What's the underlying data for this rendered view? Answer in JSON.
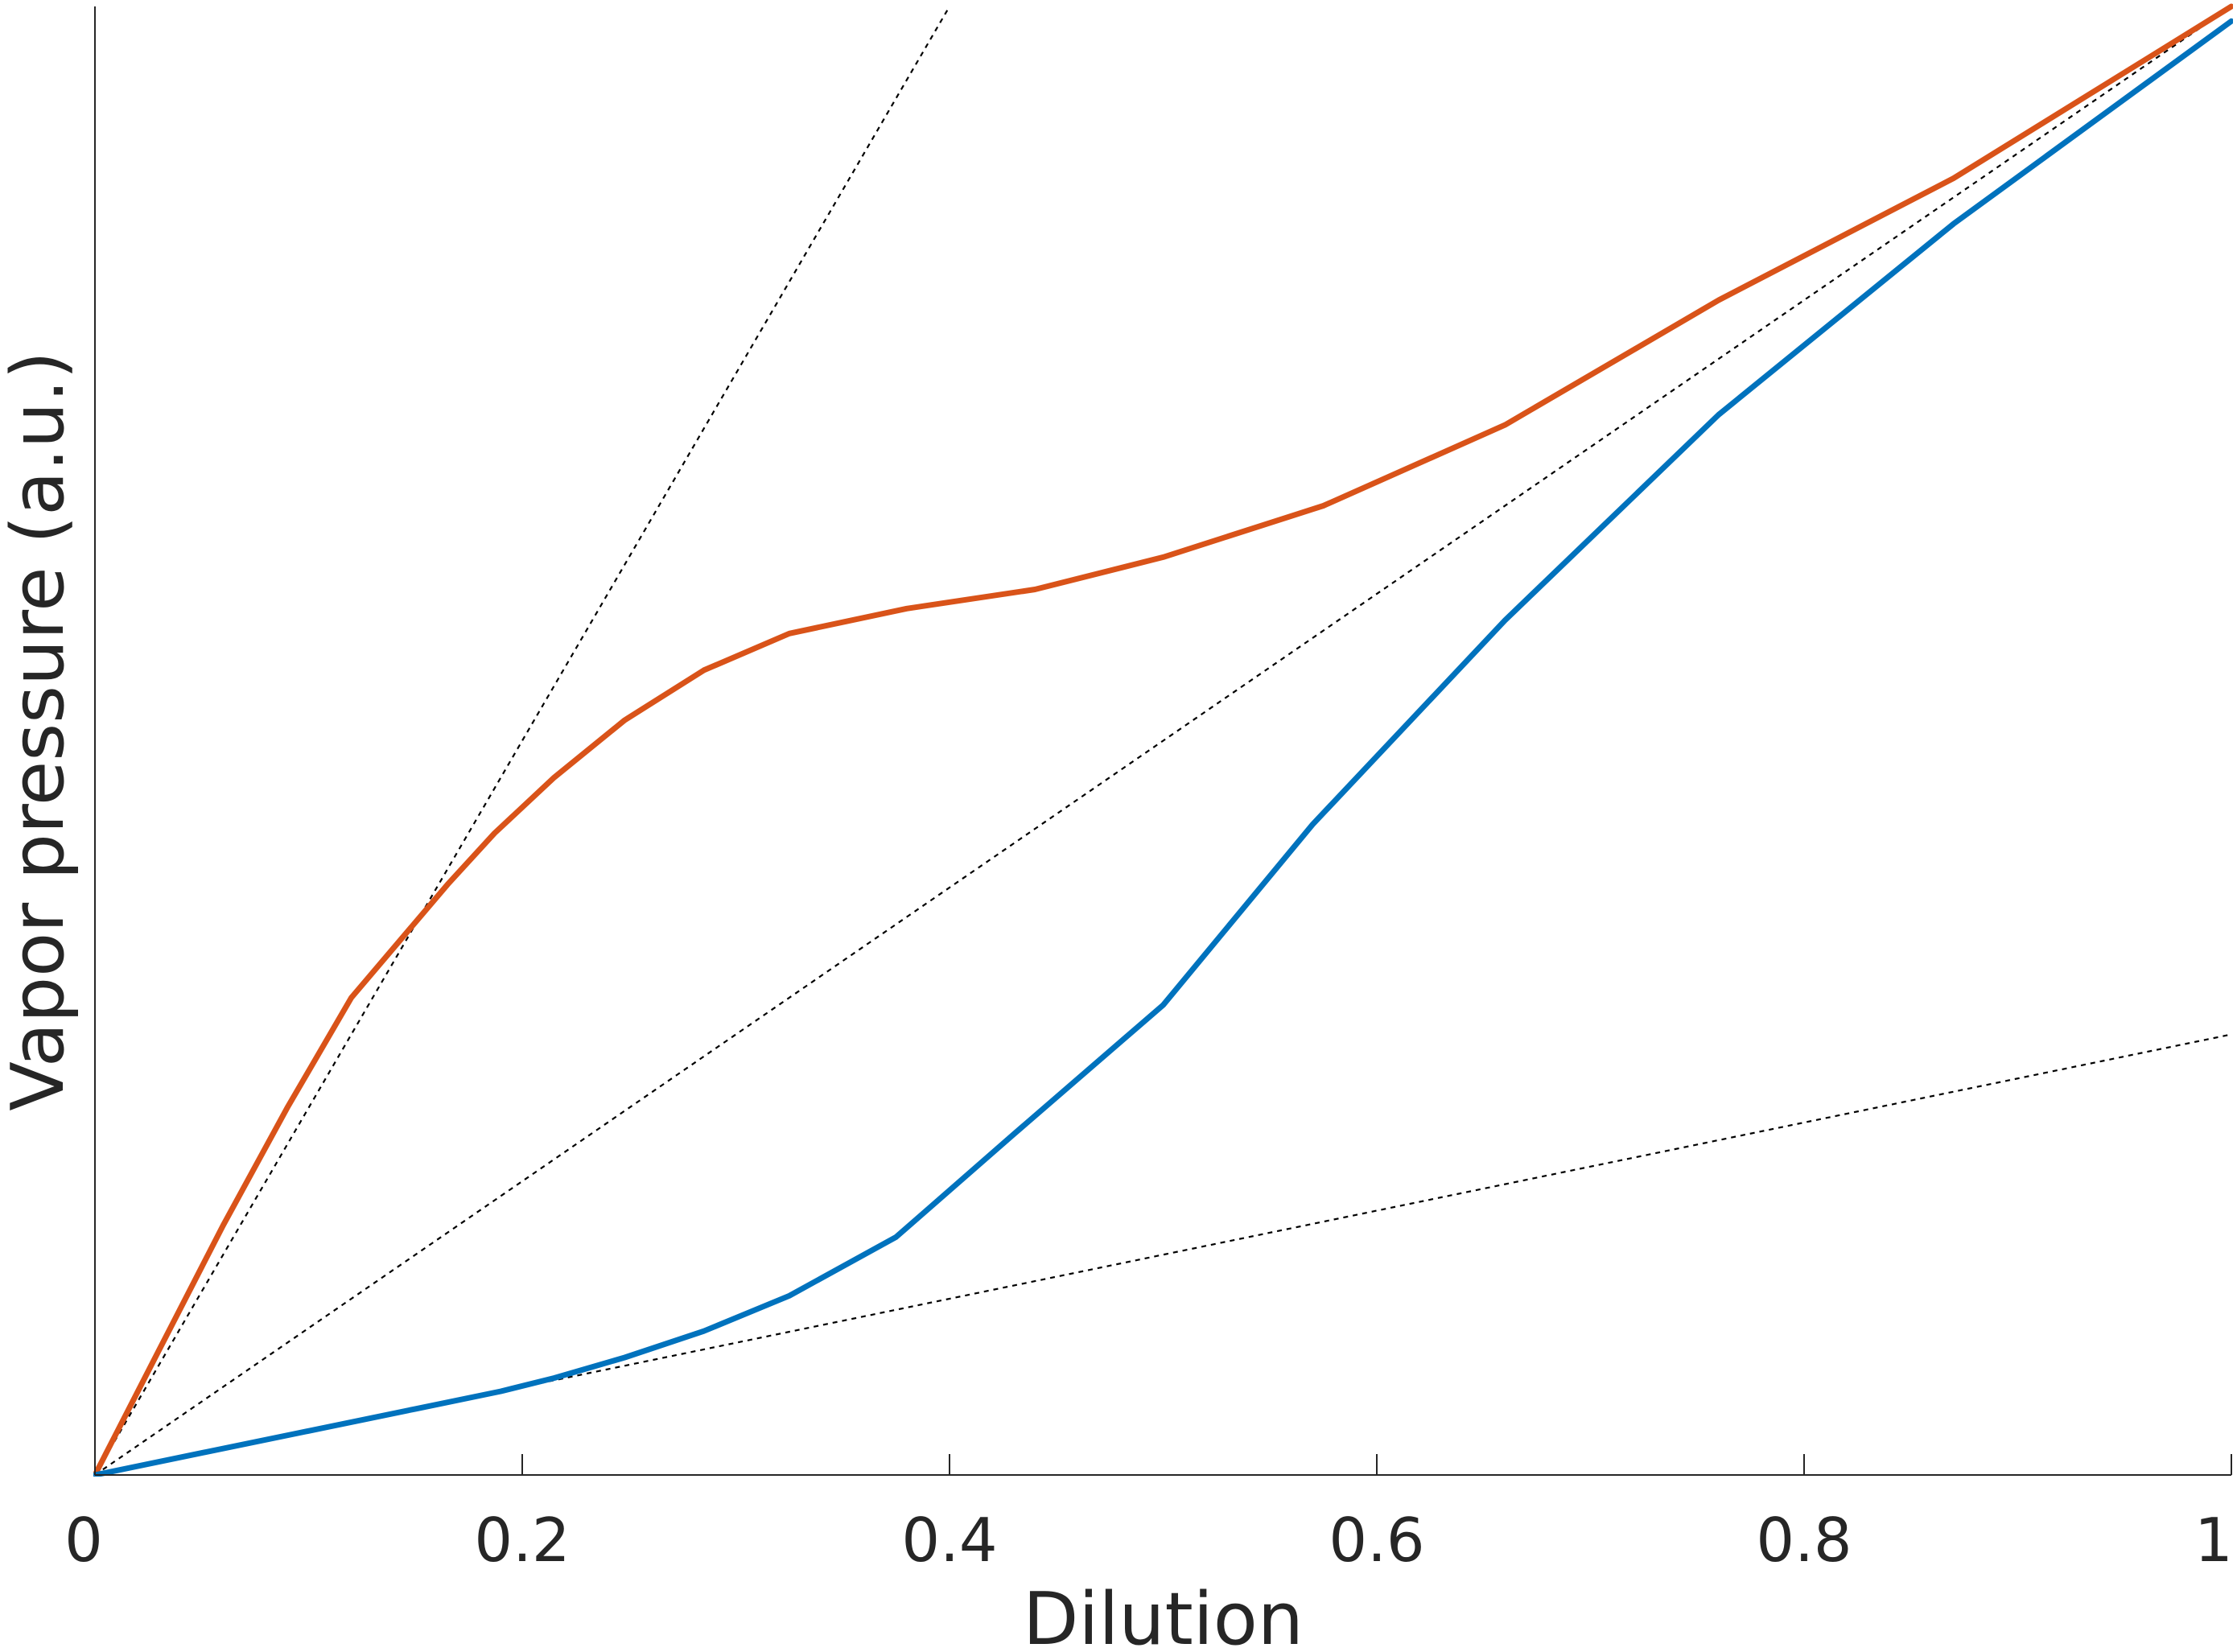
{
  "chart_data": {
    "type": "line",
    "xlabel": "Dilution",
    "ylabel": "Vapor pressure (a.u.)",
    "xlim": [
      0,
      1
    ],
    "ylim": [
      0,
      1
    ],
    "x_ticks": [
      0,
      0.2,
      0.4,
      0.6,
      0.8,
      1
    ],
    "x_tick_labels": [
      "0",
      "0.2",
      "0.4",
      "0.6",
      "0.8",
      "1"
    ],
    "grid": false,
    "legend": "none",
    "series": [
      {
        "color": "#D95319",
        "style": "solid",
        "x": [
          0,
          0.03,
          0.06,
          0.09,
          0.12,
          0.165,
          0.187,
          0.215,
          0.248,
          0.285,
          0.325,
          0.38,
          0.44,
          0.5,
          0.575,
          0.66,
          0.76,
          0.87,
          1.0
        ],
        "y": [
          0,
          0.085,
          0.17,
          0.25,
          0.325,
          0.402,
          0.437,
          0.475,
          0.514,
          0.548,
          0.573,
          0.59,
          0.603,
          0.625,
          0.66,
          0.715,
          0.8,
          0.883,
          1.0
        ]
      },
      {
        "color": "#0072BD",
        "style": "solid",
        "x": [
          0,
          0.05,
          0.1,
          0.15,
          0.19,
          0.215,
          0.248,
          0.285,
          0.325,
          0.375,
          0.43,
          0.5,
          0.57,
          0.66,
          0.76,
          0.87,
          1.0
        ],
        "y": [
          0,
          0.015,
          0.03,
          0.045,
          0.057,
          0.066,
          0.08,
          0.098,
          0.122,
          0.162,
          0.232,
          0.32,
          0.443,
          0.582,
          0.722,
          0.852,
          0.99
        ]
      },
      {
        "color": "#000000",
        "style": "dotted",
        "x": [
          0,
          0.4
        ],
        "y": [
          0,
          1.0
        ]
      },
      {
        "color": "#000000",
        "style": "dotted",
        "x": [
          0,
          1
        ],
        "y": [
          0,
          1.0
        ]
      },
      {
        "color": "#000000",
        "style": "dotted",
        "x": [
          0,
          1
        ],
        "y": [
          0,
          0.3
        ]
      }
    ]
  }
}
